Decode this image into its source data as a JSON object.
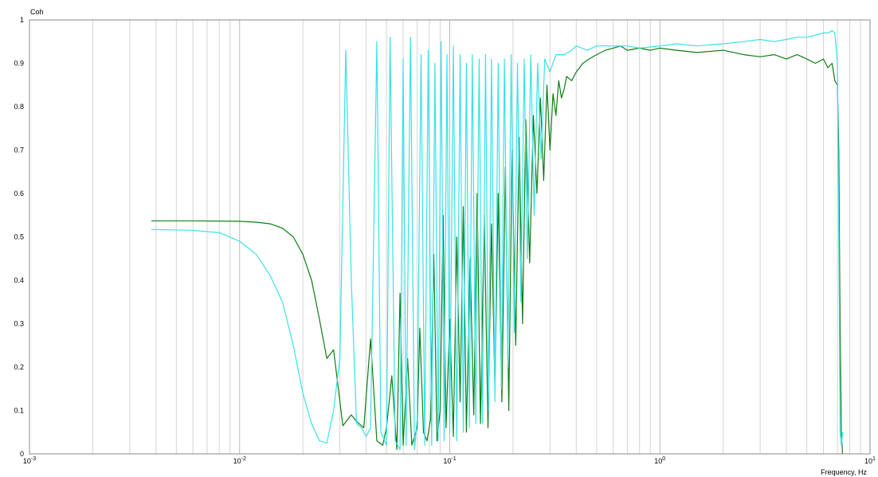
{
  "chart_data": {
    "type": "line",
    "title": "",
    "ylabel": "Coh",
    "xlabel": "Frequency, Hz",
    "xscale": "log",
    "xlim": [
      0.001,
      10
    ],
    "ylim": [
      0,
      1
    ],
    "grid": true,
    "legend": "none",
    "yticks": [
      "0",
      "0.1",
      "0.2",
      "0.3",
      "0.4",
      "0.5",
      "0.6",
      "0.7",
      "0.8",
      "0.9",
      "1"
    ],
    "xticks": [
      {
        "base": "10",
        "exp": "-3"
      },
      {
        "base": "10",
        "exp": "-2"
      },
      {
        "base": "10",
        "exp": "-1"
      },
      {
        "base": "10",
        "exp": "0"
      },
      {
        "base": "10",
        "exp": "1"
      }
    ],
    "series": [
      {
        "color": "#0f7d12",
        "x": [
          0.0038,
          0.006,
          0.01,
          0.012,
          0.014,
          0.016,
          0.018,
          0.02,
          0.022,
          0.024,
          0.026,
          0.028,
          0.031,
          0.034,
          0.036,
          0.039,
          0.042,
          0.045,
          0.048,
          0.05,
          0.053,
          0.056,
          0.058,
          0.06,
          0.063,
          0.066,
          0.07,
          0.072,
          0.075,
          0.078,
          0.081,
          0.084,
          0.087,
          0.09,
          0.093,
          0.096,
          0.1,
          0.104,
          0.108,
          0.112,
          0.116,
          0.12,
          0.125,
          0.13,
          0.135,
          0.14,
          0.146,
          0.152,
          0.158,
          0.164,
          0.17,
          0.177,
          0.184,
          0.191,
          0.198,
          0.206,
          0.214,
          0.222,
          0.23,
          0.24,
          0.25,
          0.26,
          0.27,
          0.28,
          0.29,
          0.3,
          0.31,
          0.32,
          0.33,
          0.34,
          0.35,
          0.36,
          0.38,
          0.4,
          0.43,
          0.46,
          0.5,
          0.55,
          0.6,
          0.65,
          0.7,
          0.8,
          0.9,
          1.0,
          1.2,
          1.5,
          2.0,
          2.5,
          3.0,
          3.5,
          4.0,
          4.5,
          5.0,
          5.5,
          6.0,
          6.3,
          6.6,
          6.8,
          7.0,
          7.1,
          7.2,
          7.3,
          7.4
        ],
        "y": [
          0.537,
          0.537,
          0.536,
          0.534,
          0.53,
          0.52,
          0.5,
          0.46,
          0.4,
          0.31,
          0.22,
          0.24,
          0.065,
          0.09,
          0.075,
          0.06,
          0.265,
          0.03,
          0.02,
          0.06,
          0.18,
          0.01,
          0.37,
          0.02,
          0.22,
          0.02,
          0.06,
          0.29,
          0.05,
          0.03,
          0.08,
          0.46,
          0.03,
          0.1,
          0.55,
          0.06,
          0.31,
          0.04,
          0.5,
          0.12,
          0.57,
          0.05,
          0.45,
          0.09,
          0.6,
          0.07,
          0.55,
          0.06,
          0.53,
          0.15,
          0.6,
          0.12,
          0.66,
          0.1,
          0.7,
          0.25,
          0.73,
          0.3,
          0.77,
          0.44,
          0.78,
          0.6,
          0.82,
          0.63,
          0.85,
          0.7,
          0.83,
          0.78,
          0.86,
          0.82,
          0.84,
          0.87,
          0.86,
          0.88,
          0.9,
          0.91,
          0.92,
          0.93,
          0.935,
          0.94,
          0.93,
          0.935,
          0.93,
          0.935,
          0.93,
          0.925,
          0.93,
          0.92,
          0.915,
          0.92,
          0.91,
          0.92,
          0.91,
          0.9,
          0.91,
          0.89,
          0.9,
          0.86,
          0.85,
          0.7,
          0.3,
          0.05,
          0.0
        ]
      },
      {
        "color": "#36e2e8",
        "x": [
          0.0038,
          0.006,
          0.008,
          0.01,
          0.012,
          0.014,
          0.016,
          0.018,
          0.02,
          0.022,
          0.024,
          0.026,
          0.028,
          0.03,
          0.032,
          0.034,
          0.036,
          0.038,
          0.04,
          0.042,
          0.045,
          0.047,
          0.05,
          0.052,
          0.055,
          0.058,
          0.06,
          0.062,
          0.065,
          0.068,
          0.07,
          0.073,
          0.076,
          0.079,
          0.082,
          0.085,
          0.088,
          0.091,
          0.094,
          0.097,
          0.1,
          0.104,
          0.108,
          0.112,
          0.116,
          0.12,
          0.124,
          0.128,
          0.133,
          0.138,
          0.143,
          0.148,
          0.153,
          0.158,
          0.164,
          0.17,
          0.176,
          0.182,
          0.189,
          0.196,
          0.203,
          0.21,
          0.218,
          0.226,
          0.234,
          0.243,
          0.252,
          0.262,
          0.272,
          0.283,
          0.3,
          0.32,
          0.35,
          0.38,
          0.4,
          0.45,
          0.5,
          0.6,
          0.7,
          0.8,
          1.0,
          1.2,
          1.5,
          2.0,
          2.5,
          3.0,
          3.5,
          4.0,
          4.5,
          5.0,
          5.5,
          6.0,
          6.3,
          6.6,
          6.8,
          7.0,
          7.1,
          7.2,
          7.3,
          7.4
        ],
        "y": [
          0.517,
          0.515,
          0.51,
          0.49,
          0.46,
          0.41,
          0.35,
          0.25,
          0.14,
          0.07,
          0.03,
          0.025,
          0.1,
          0.22,
          0.93,
          0.4,
          0.07,
          0.06,
          0.04,
          0.06,
          0.95,
          0.05,
          0.02,
          0.96,
          0.03,
          0.01,
          0.91,
          0.02,
          0.96,
          0.01,
          0.08,
          0.92,
          0.02,
          0.93,
          0.02,
          0.9,
          0.03,
          0.95,
          0.03,
          0.92,
          0.05,
          0.94,
          0.03,
          0.92,
          0.05,
          0.9,
          0.06,
          0.92,
          0.07,
          0.91,
          0.07,
          0.92,
          0.1,
          0.91,
          0.12,
          0.9,
          0.15,
          0.91,
          0.2,
          0.92,
          0.28,
          0.9,
          0.35,
          0.91,
          0.45,
          0.92,
          0.55,
          0.9,
          0.68,
          0.91,
          0.88,
          0.92,
          0.92,
          0.93,
          0.94,
          0.93,
          0.94,
          0.94,
          0.94,
          0.935,
          0.94,
          0.945,
          0.94,
          0.945,
          0.95,
          0.955,
          0.95,
          0.955,
          0.96,
          0.96,
          0.965,
          0.97,
          0.97,
          0.975,
          0.97,
          0.9,
          0.5,
          0.05,
          0.02,
          0.05
        ]
      }
    ]
  }
}
